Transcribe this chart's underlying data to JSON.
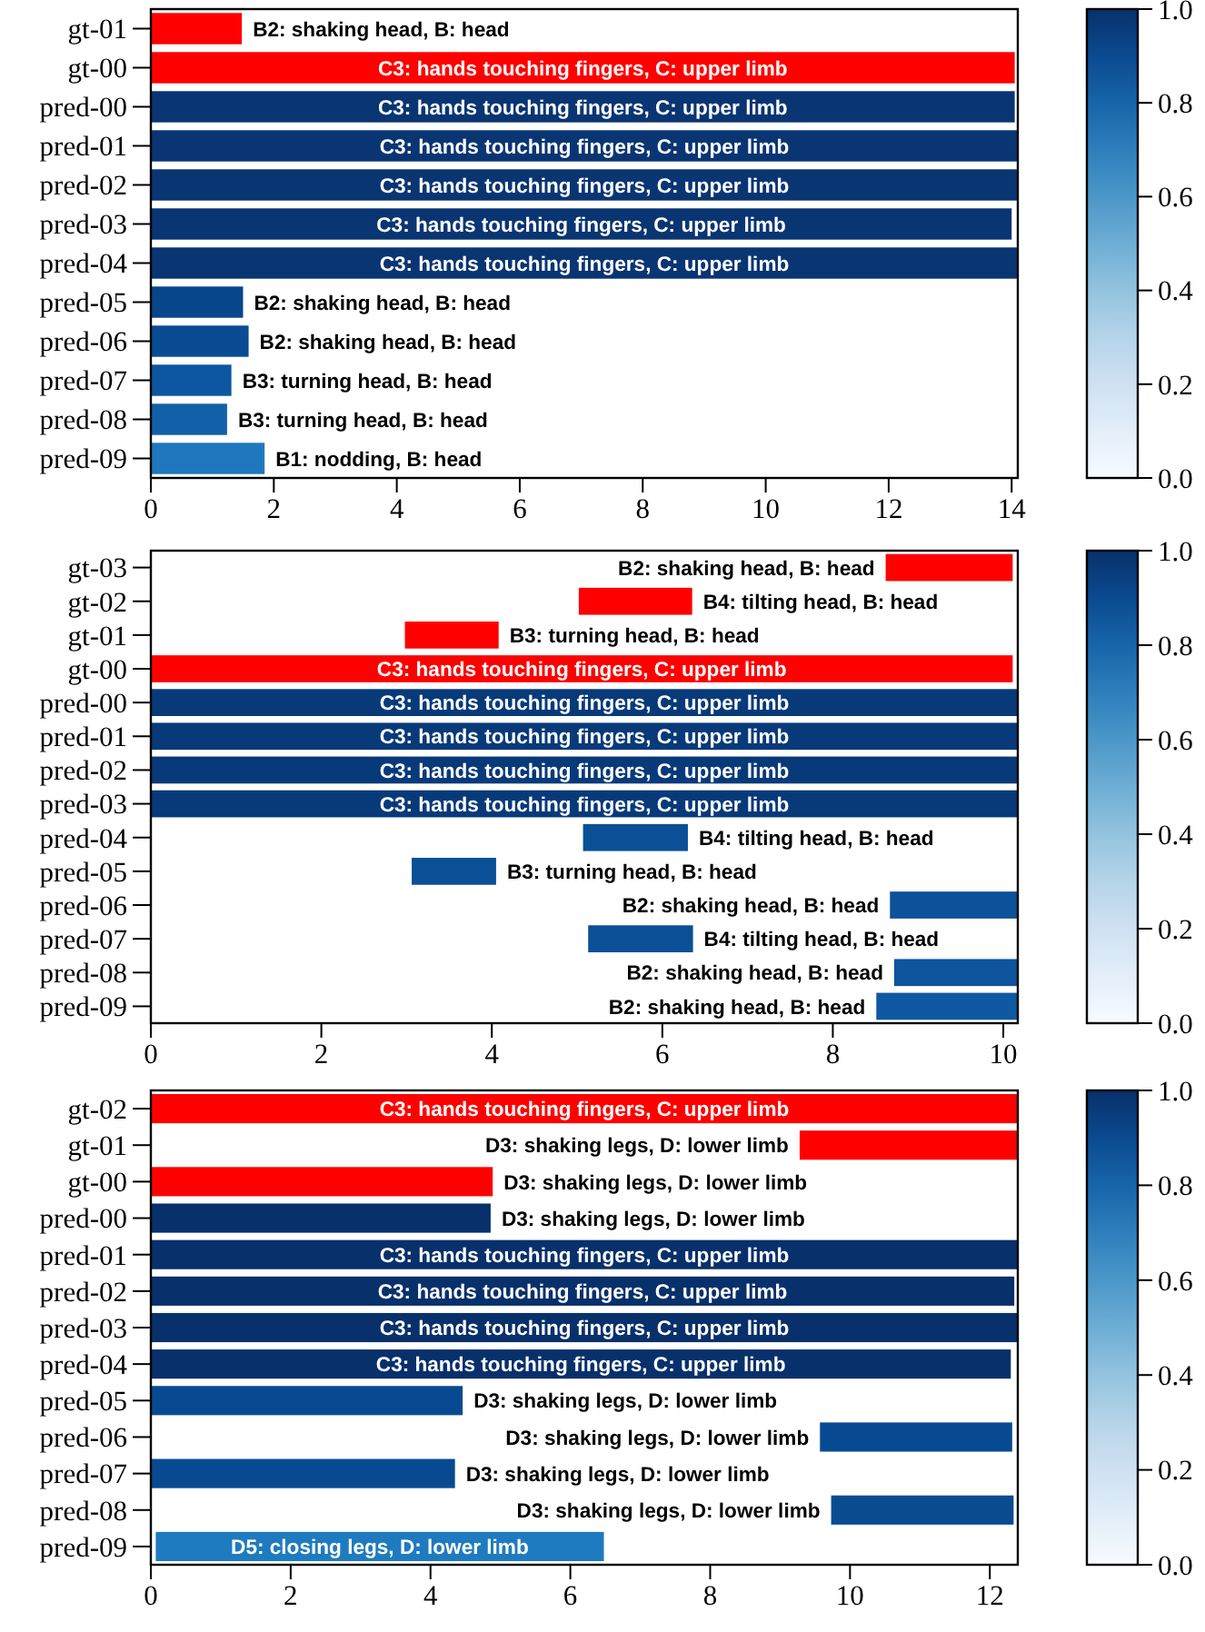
{
  "chart_data": [
    {
      "type": "bar",
      "orientation": "horizontal",
      "categories": [
        "gt-01",
        "gt-00",
        "pred-00",
        "pred-01",
        "pred-02",
        "pred-03",
        "pred-04",
        "pred-05",
        "pred-06",
        "pred-07",
        "pred-08",
        "pred-09"
      ],
      "base": [
        0,
        0,
        0,
        0,
        0,
        0,
        0,
        0,
        0,
        0,
        0,
        0
      ],
      "values": [
        1.48,
        14.05,
        14.05,
        14.1,
        14.1,
        14.0,
        14.1,
        1.5,
        1.59,
        1.31,
        1.24,
        1.85
      ],
      "colors": [
        "#ff0000",
        "#ff0000",
        "#0a3573",
        "#0a3573",
        "#0a3573",
        "#0a3573",
        "#0a3573",
        "#08468c",
        "#0a4c94",
        "#0d56a0",
        "#1261a8",
        "#1f78bd"
      ],
      "value_labels": [
        "B2: shaking head, B: head",
        "C3: hands touching fingers, C: upper limb",
        "C3: hands touching fingers, C: upper limb",
        "C3: hands touching fingers, C: upper limb",
        "C3: hands touching fingers, C: upper limb",
        "C3: hands touching fingers, C: upper limb",
        "C3: hands touching fingers, C: upper limb",
        "B2: shaking head, B: head",
        "B2: shaking head, B: head",
        "B3: turning head, B: head",
        "B3: turning head, B: head",
        "B1: nodding, B: head"
      ],
      "xlim": [
        0,
        14.1
      ],
      "xticks": [
        0,
        2,
        4,
        6,
        8,
        10,
        12,
        14
      ],
      "clim": [
        0,
        1
      ],
      "cticks": [
        {
          "value": 0,
          "label": "0.0"
        },
        {
          "value": 0.2,
          "label": "0.2"
        },
        {
          "value": 0.4,
          "label": "0.4"
        },
        {
          "value": 0.6,
          "label": "0.6"
        },
        {
          "value": 0.8,
          "label": "0.8"
        },
        {
          "value": 1,
          "label": "1.0"
        }
      ]
    },
    {
      "type": "bar",
      "orientation": "horizontal",
      "categories": [
        "gt-03",
        "gt-02",
        "gt-01",
        "gt-00",
        "pred-00",
        "pred-01",
        "pred-02",
        "pred-03",
        "pred-04",
        "pred-05",
        "pred-06",
        "pred-07",
        "pred-08",
        "pred-09"
      ],
      "base": [
        8.62,
        5.02,
        2.98,
        0,
        0,
        0,
        0,
        0,
        5.07,
        3.06,
        8.67,
        5.13,
        8.72,
        8.51
      ],
      "values": [
        1.49,
        1.33,
        1.1,
        10.11,
        10.17,
        10.17,
        10.17,
        10.17,
        1.23,
        0.99,
        1.5,
        1.23,
        1.45,
        1.66
      ],
      "colors": [
        "#ff0000",
        "#ff0000",
        "#ff0000",
        "#ff0000",
        "#083a7a",
        "#083a7a",
        "#083a7a",
        "#083a7a",
        "#0b4f96",
        "#0b4f96",
        "#0c5199",
        "#0b4f96",
        "#0d549c",
        "#0e59a2"
      ],
      "value_labels": [
        "B2: shaking head, B: head",
        "B4: tilting head, B: head",
        "B3: turning head, B: head",
        "C3: hands touching fingers, C: upper limb",
        "C3: hands touching fingers, C: upper limb",
        "C3: hands touching fingers, C: upper limb",
        "C3: hands touching fingers, C: upper limb",
        "C3: hands touching fingers, C: upper limb",
        "B4: tilting head, B: head",
        "B3: turning head, B: head",
        "B2: shaking head, B: head",
        "B4: tilting head, B: head",
        "B2: shaking head, B: head",
        "B2: shaking head, B: head"
      ],
      "xlim": [
        0,
        10.17
      ],
      "xticks": [
        0,
        2,
        4,
        6,
        8,
        10
      ],
      "clim": [
        0,
        1
      ],
      "cticks": [
        {
          "value": 0,
          "label": "0.0"
        },
        {
          "value": 0.2,
          "label": "0.2"
        },
        {
          "value": 0.4,
          "label": "0.4"
        },
        {
          "value": 0.6,
          "label": "0.6"
        },
        {
          "value": 0.8,
          "label": "0.8"
        },
        {
          "value": 1,
          "label": "1.0"
        }
      ]
    },
    {
      "type": "bar",
      "orientation": "horizontal",
      "categories": [
        "gt-02",
        "gt-01",
        "gt-00",
        "pred-00",
        "pred-01",
        "pred-02",
        "pred-03",
        "pred-04",
        "pred-05",
        "pred-06",
        "pred-07",
        "pred-08",
        "pred-09"
      ],
      "base": [
        0,
        9.28,
        0,
        0,
        0,
        0,
        0,
        0,
        0,
        9.57,
        0,
        9.73,
        0.07
      ],
      "values": [
        12.4,
        3.12,
        4.89,
        4.86,
        12.4,
        12.35,
        12.4,
        12.3,
        4.46,
        2.75,
        4.35,
        2.61,
        6.41
      ],
      "colors": [
        "#ff0000",
        "#ff0000",
        "#ff0000",
        "#08306b",
        "#08306b",
        "#08306b",
        "#08306b",
        "#08306b",
        "#084a91",
        "#084a91",
        "#084a91",
        "#0a4c92",
        "#1f7bbf"
      ],
      "value_labels": [
        "C3: hands touching fingers, C: upper limb",
        "D3: shaking legs, D: lower limb",
        "D3: shaking legs, D: lower limb",
        "D3: shaking legs, D: lower limb",
        "C3: hands touching fingers, C: upper limb",
        "C3: hands touching fingers, C: upper limb",
        "C3: hands touching fingers, C: upper limb",
        "C3: hands touching fingers, C: upper limb",
        "D3: shaking legs, D: lower limb",
        "D3: shaking legs, D: lower limb",
        "D3: shaking legs, D: lower limb",
        "D3: shaking legs, D: lower limb",
        "D5: closing legs, D: lower limb"
      ],
      "xlim": [
        0,
        12.4
      ],
      "xticks": [
        0,
        2,
        4,
        6,
        8,
        10,
        12
      ],
      "clim": [
        0,
        1
      ],
      "cticks": [
        {
          "value": 0,
          "label": "0.0"
        },
        {
          "value": 0.2,
          "label": "0.2"
        },
        {
          "value": 0.4,
          "label": "0.4"
        },
        {
          "value": 0.6,
          "label": "0.6"
        },
        {
          "value": 0.8,
          "label": "0.8"
        },
        {
          "value": 1,
          "label": "1.0"
        }
      ]
    }
  ]
}
